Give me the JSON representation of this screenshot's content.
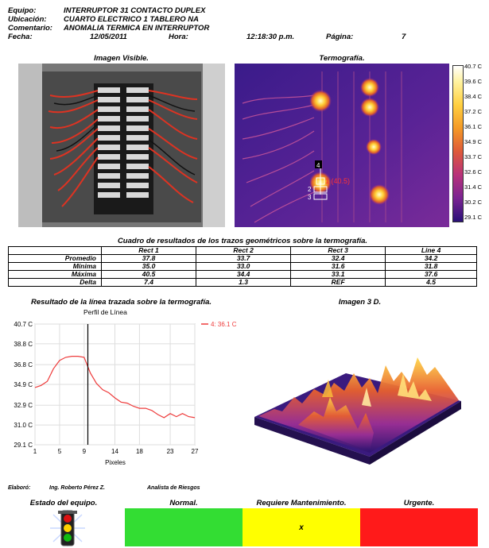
{
  "header": {
    "equipo_label": "Equipo:",
    "equipo": "INTERRUPTOR 31 CONTACTO DUPLEX",
    "ubicacion_label": "Ubicación:",
    "ubicacion": "CUARTO ELECTRICO 1 TABLERO NA",
    "comentario_label": "Comentario:",
    "comentario": "ANOMALIA TERMICA EN INTERRUPTOR",
    "fecha_label": "Fecha:",
    "fecha": "12/05/2011",
    "hora_label": "Hora:",
    "hora": "12:18:30 p.m.",
    "pagina_label": "Página:",
    "pagina": "7"
  },
  "visible": {
    "caption": "Imagen Visible."
  },
  "thermo": {
    "caption": "Termografía.",
    "scale": [
      "40.7 C",
      "39.6 C",
      "38.4 C",
      "37.2 C",
      "36.1 C",
      "34.9 C",
      "33.7 C",
      "32.6 C",
      "31.4 C",
      "30.2 C",
      "29.1 C"
    ],
    "markers": {
      "m1": "1 (40.5)",
      "m2": "2",
      "m3": "3",
      "m4": "4"
    }
  },
  "results": {
    "title": "Cuadro de resultados de los trazos geométricos sobre la termografía.",
    "columns": [
      "Rect 1",
      "Rect 2",
      "Rect 3",
      "Line 4"
    ],
    "rows": [
      {
        "label": "Promedio",
        "values": [
          "37.8",
          "33.7",
          "32.4",
          "34.2"
        ]
      },
      {
        "label": "Mínima",
        "values": [
          "35.0",
          "33.0",
          "31.6",
          "31.8"
        ]
      },
      {
        "label": "Máxima",
        "values": [
          "40.5",
          "34.4",
          "33.1",
          "37.6"
        ]
      },
      {
        "label": "Delta",
        "values": [
          "7.4",
          "1.3",
          "REF",
          "4.5"
        ]
      }
    ]
  },
  "line_chart": {
    "caption": "Resultado de la línea trazada sobre la termografía.",
    "subtitle": "Perfil de Línea",
    "legend": "4: 36.1 C",
    "xlabel": "Pixeles"
  },
  "chart_data": {
    "type": "line",
    "title": "Perfil de Línea",
    "xlabel": "Pixeles",
    "ylabel": "",
    "ylim": [
      29.1,
      40.7
    ],
    "xlim": [
      1,
      27
    ],
    "yticks": [
      "40.7 C",
      "38.8 C",
      "36.8 C",
      "34.9 C",
      "32.9 C",
      "31.0 C",
      "29.1 C"
    ],
    "ytick_values": [
      40.7,
      38.8,
      36.8,
      34.9,
      32.9,
      31.0,
      29.1
    ],
    "xticks": [
      1,
      5,
      9,
      14,
      18,
      23,
      27
    ],
    "cursor_x": 9.6,
    "series": [
      {
        "name": "4: 36.1 C",
        "color": "#ee3b3b",
        "x": [
          1,
          2,
          3,
          4,
          5,
          6,
          7,
          8,
          9,
          10,
          11,
          12,
          13,
          14,
          15,
          16,
          17,
          18,
          19,
          20,
          21,
          22,
          23,
          24,
          25,
          26,
          27
        ],
        "y": [
          34.6,
          34.8,
          35.2,
          36.4,
          37.2,
          37.5,
          37.6,
          37.6,
          37.5,
          36.0,
          35.0,
          34.4,
          34.1,
          33.6,
          33.2,
          33.1,
          32.8,
          32.6,
          32.6,
          32.4,
          32.0,
          31.7,
          32.1,
          31.8,
          32.1,
          31.8,
          31.7
        ]
      }
    ]
  },
  "image3d": {
    "caption": "Imagen 3 D."
  },
  "footer": {
    "elaboro_label": "Elaboró:",
    "elaboro": "Ing. Roberto Pérez Z.",
    "cargo": "Analista de Riesgos",
    "estado_label": "Estado del equipo.",
    "normal": "Normal.",
    "mantenimiento": "Requiere Mantenimiento.",
    "urgente": "Urgente.",
    "mark": "x",
    "colors": {
      "normal": "#33dd33",
      "mantenimiento": "#ffff00",
      "urgente": "#ff1a1a"
    }
  }
}
